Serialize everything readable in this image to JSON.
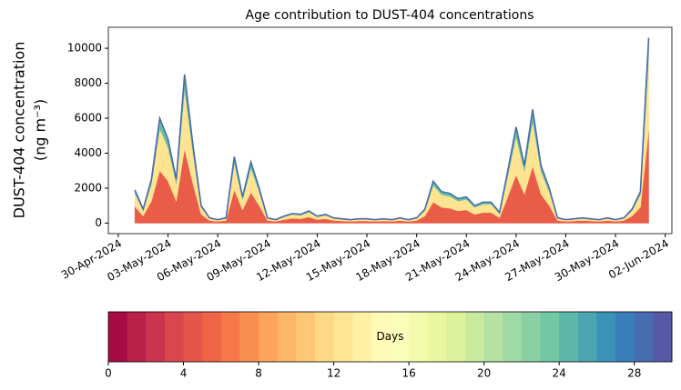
{
  "chart_data": {
    "type": "stacked_area",
    "title": "Age contribution to DUST-404 concentrations",
    "ylabel": [
      "DUST-404 concentration",
      "(ng m⁻³)"
    ],
    "x": [
      1.0,
      1.5,
      2.0,
      2.5,
      3.0,
      3.5,
      4.0,
      4.5,
      5.0,
      5.5,
      6.0,
      6.5,
      7.0,
      7.5,
      8.0,
      8.5,
      9.0,
      9.5,
      10.0,
      10.5,
      11.0,
      11.5,
      12.0,
      12.5,
      13.0,
      13.5,
      14.0,
      14.5,
      15.0,
      15.5,
      16.0,
      16.5,
      17.0,
      17.5,
      18.0,
      18.5,
      19.0,
      19.5,
      20.0,
      20.5,
      21.0,
      21.5,
      22.0,
      22.5,
      23.0,
      23.5,
      24.0,
      24.5,
      25.0,
      25.5,
      26.0,
      26.5,
      27.0,
      27.5,
      28.0,
      28.5,
      29.0,
      29.5,
      30.0,
      30.5,
      31.0,
      31.5,
      32.0
    ],
    "series": [
      {
        "color": "#e95c47",
        "values": [
          950,
          400,
          1250,
          3000,
          2400,
          1250,
          4250,
          2250,
          500,
          150,
          100,
          150,
          1900,
          750,
          1750,
          1000,
          150,
          100,
          200,
          275,
          250,
          350,
          200,
          250,
          150,
          125,
          100,
          125,
          125,
          100,
          125,
          100,
          150,
          100,
          150,
          400,
          1200,
          900,
          850,
          700,
          750,
          500,
          600,
          600,
          300,
          1500,
          2750,
          1650,
          3250,
          1650,
          1000,
          150,
          100,
          125,
          150,
          125,
          100,
          150,
          100,
          150,
          400,
          900,
          5300
        ]
      },
      {
        "color": "#fee391",
        "values": [
          760,
          320,
          1000,
          2400,
          1920,
          1000,
          3400,
          1800,
          400,
          120,
          80,
          120,
          1520,
          600,
          1400,
          800,
          120,
          80,
          160,
          220,
          200,
          280,
          160,
          200,
          120,
          100,
          80,
          100,
          100,
          80,
          100,
          80,
          120,
          80,
          120,
          320,
          960,
          720,
          680,
          560,
          600,
          400,
          480,
          480,
          240,
          1200,
          2200,
          1320,
          2600,
          1320,
          800,
          120,
          80,
          100,
          120,
          100,
          80,
          120,
          80,
          120,
          320,
          720,
          4240
        ]
      },
      {
        "color": "#66c2a5",
        "values": [
          190,
          80,
          250,
          600,
          480,
          250,
          850,
          450,
          100,
          30,
          20,
          30,
          380,
          150,
          350,
          200,
          30,
          20,
          40,
          55,
          50,
          70,
          40,
          50,
          30,
          25,
          20,
          25,
          25,
          20,
          25,
          20,
          30,
          20,
          30,
          80,
          240,
          180,
          170,
          140,
          150,
          100,
          120,
          120,
          60,
          300,
          550,
          330,
          650,
          330,
          200,
          30,
          20,
          25,
          30,
          25,
          20,
          30,
          20,
          30,
          80,
          180,
          1060
        ]
      }
    ],
    "line_color": "#4a6aa8",
    "xlim": [
      -0.6,
      33.4
    ],
    "xticks": [
      {
        "value": 0,
        "label": "30-Apr-2024"
      },
      {
        "value": 3,
        "label": "03-May-2024"
      },
      {
        "value": 6,
        "label": "06-May-2024"
      },
      {
        "value": 9,
        "label": "09-May-2024"
      },
      {
        "value": 12,
        "label": "12-May-2024"
      },
      {
        "value": 15,
        "label": "15-May-2024"
      },
      {
        "value": 18,
        "label": "18-May-2024"
      },
      {
        "value": 21,
        "label": "21-May-2024"
      },
      {
        "value": 24,
        "label": "24-May-2024"
      },
      {
        "value": 27,
        "label": "27-May-2024"
      },
      {
        "value": 30,
        "label": "30-May-2024"
      },
      {
        "value": 33,
        "label": "02-Jun-2024"
      }
    ],
    "ylim": [
      -600,
      11200
    ],
    "yticks": [
      0,
      2000,
      4000,
      6000,
      8000,
      10000
    ],
    "colorbar": {
      "label": "Days",
      "lim": [
        0,
        30
      ],
      "ticks": [
        0,
        4,
        8,
        12,
        16,
        20,
        24,
        28
      ],
      "levels": 30,
      "colors": [
        "#9e0142",
        "#d53e4f",
        "#f46d43",
        "#fdae61",
        "#fee08b",
        "#ffffbf",
        "#e6f598",
        "#abdda4",
        "#66c2a5",
        "#3288bd",
        "#5e4fa2"
      ]
    }
  }
}
